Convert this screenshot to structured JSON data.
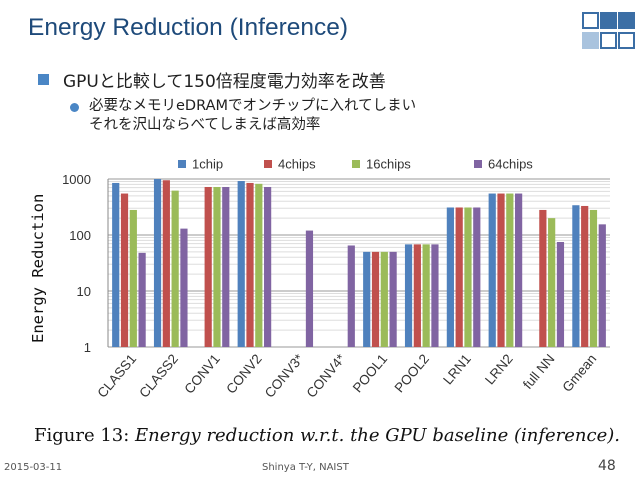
{
  "slide": {
    "title": "Energy Reduction (Inference)",
    "bullet1": "GPUと比較して150倍程度電力効率を改善",
    "bullet2_line1": "必要なメモリeDRAMでオンチップに入れてしまい",
    "bullet2_line2": "それを沢山ならべてしまえば高効率",
    "caption_prefix": "Figure 13:",
    "caption_text": "Energy reduction w.r.t. the GPU baseline (inference).",
    "date": "2015-03-11",
    "author": "Shinya T-Y, NAIST",
    "page": "48"
  },
  "chart_data": {
    "type": "bar",
    "ylabel": "Energy Reduction",
    "yscale": "log",
    "ylim": [
      1,
      1000
    ],
    "yticks": [
      "1",
      "10",
      "100",
      "1000"
    ],
    "legend_position": "top",
    "categories": [
      "CLASS1",
      "CLASS2",
      "CONV1",
      "CONV2",
      "CONV3*",
      "CONV4*",
      "POOL1",
      "POOL2",
      "LRN1",
      "LRN2",
      "full NN",
      "Gmean"
    ],
    "series": [
      {
        "name": "1chip",
        "color": "#4f81bd",
        "values": [
          850,
          1000,
          null,
          920,
          null,
          null,
          50,
          68,
          310,
          550,
          null,
          340
        ]
      },
      {
        "name": "4chips",
        "color": "#c0504d",
        "values": [
          550,
          950,
          720,
          850,
          null,
          null,
          50,
          68,
          310,
          550,
          280,
          330
        ]
      },
      {
        "name": "16chips",
        "color": "#9bbb59",
        "values": [
          280,
          620,
          720,
          820,
          null,
          null,
          50,
          68,
          310,
          550,
          200,
          280
        ]
      },
      {
        "name": "64chips",
        "color": "#8064a2",
        "values": [
          48,
          130,
          720,
          720,
          120,
          65,
          50,
          68,
          310,
          550,
          75,
          155
        ]
      }
    ]
  }
}
